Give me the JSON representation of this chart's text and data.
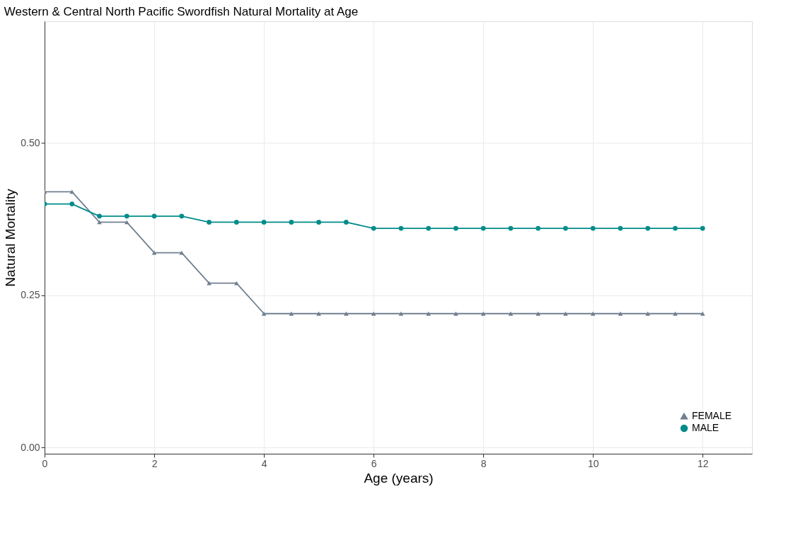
{
  "chart_data": {
    "type": "line",
    "title": "Western & Central North Pacific Swordfish Natural Mortality at Age",
    "xlabel": "Age (years)",
    "ylabel": "Natural Mortality",
    "x": [
      0,
      0.5,
      1,
      1.5,
      2,
      2.5,
      3,
      3.5,
      4,
      4.5,
      5,
      5.5,
      6,
      6.5,
      7,
      7.5,
      8,
      8.5,
      9,
      9.5,
      10,
      10.5,
      11,
      11.5,
      12
    ],
    "series": [
      {
        "name": "FEMALE",
        "color": "#708090",
        "marker": "triangle",
        "values": [
          0.42,
          0.42,
          0.37,
          0.37,
          0.32,
          0.32,
          0.27,
          0.27,
          0.22,
          0.22,
          0.22,
          0.22,
          0.22,
          0.22,
          0.22,
          0.22,
          0.22,
          0.22,
          0.22,
          0.22,
          0.22,
          0.22,
          0.22,
          0.22,
          0.22
        ]
      },
      {
        "name": "MALE",
        "color": "#008b8b",
        "marker": "circle",
        "values": [
          0.4,
          0.4,
          0.38,
          0.38,
          0.38,
          0.38,
          0.37,
          0.37,
          0.37,
          0.37,
          0.37,
          0.37,
          0.36,
          0.36,
          0.36,
          0.36,
          0.36,
          0.36,
          0.36,
          0.36,
          0.36,
          0.36,
          0.36,
          0.36,
          0.36
        ]
      }
    ],
    "xlim": [
      0,
      12.9
    ],
    "xticks": [
      0,
      2,
      4,
      6,
      8,
      10,
      12
    ],
    "ylim": [
      -0.01,
      0.7
    ],
    "yticks": [
      {
        "value": 0,
        "label": "0.00"
      },
      {
        "value": 0.25,
        "label": "0.25"
      },
      {
        "value": 0.5,
        "label": "0.50"
      }
    ],
    "grid": true,
    "legend": "bottom right",
    "line_style": "solid"
  }
}
